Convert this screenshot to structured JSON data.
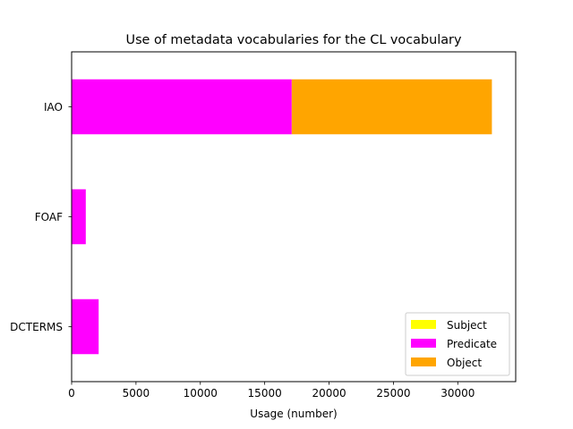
{
  "chart_data": {
    "type": "bar",
    "orientation": "horizontal",
    "stacked": true,
    "title": "Use of metadata vocabularies for the CL vocabulary",
    "xlabel": "Usage (number)",
    "ylabel": "",
    "categories": [
      "DCTERMS",
      "FOAF",
      "IAO"
    ],
    "series": [
      {
        "name": "Subject",
        "color": "#ffff00",
        "values": [
          0,
          0,
          0
        ]
      },
      {
        "name": "Predicate",
        "color": "#ff00ff",
        "values": [
          2100,
          1100,
          17100
        ]
      },
      {
        "name": "Object",
        "color": "#ffa500",
        "values": [
          0,
          0,
          15550
        ]
      }
    ],
    "xlim": [
      0,
      34500
    ],
    "xticks": [
      0,
      5000,
      10000,
      15000,
      20000,
      25000,
      30000
    ],
    "grid": false,
    "legend_position": "lower-right"
  }
}
